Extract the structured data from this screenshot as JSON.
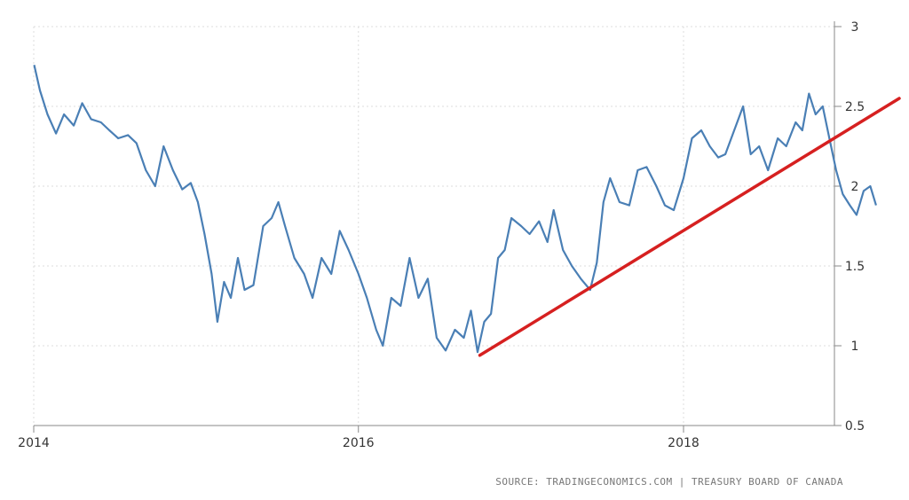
{
  "chart_data": {
    "type": "line",
    "title": "",
    "xlabel": "",
    "ylabel": "",
    "x_ticks": [
      {
        "label": "2014",
        "x": "2014-01-01"
      },
      {
        "label": "2016",
        "x": "2016-01-01"
      },
      {
        "label": "2018",
        "x": "2018-01-01"
      }
    ],
    "y_ticks": [
      {
        "label": "0.5",
        "y": 0.5
      },
      {
        "label": "1",
        "y": 1
      },
      {
        "label": "1.5",
        "y": 1.5
      },
      {
        "label": "2",
        "y": 2
      },
      {
        "label": "2.5",
        "y": 2.5
      },
      {
        "label": "3",
        "y": 3
      }
    ],
    "xlim": [
      "2014-01-01",
      "2019-05-01"
    ],
    "ylim": [
      0.5,
      3
    ],
    "grid": true,
    "y_axis_side": "right",
    "series": [
      {
        "color": "#4a7fb5",
        "points": [
          [
            "2014-01-02",
            2.76
          ],
          [
            "2014-01-15",
            2.6
          ],
          [
            "2014-02-01",
            2.45
          ],
          [
            "2014-02-20",
            2.33
          ],
          [
            "2014-03-10",
            2.45
          ],
          [
            "2014-04-01",
            2.38
          ],
          [
            "2014-04-20",
            2.52
          ],
          [
            "2014-05-10",
            2.42
          ],
          [
            "2014-06-01",
            2.4
          ],
          [
            "2014-06-20",
            2.35
          ],
          [
            "2014-07-10",
            2.3
          ],
          [
            "2014-08-01",
            2.32
          ],
          [
            "2014-08-20",
            2.27
          ],
          [
            "2014-09-10",
            2.1
          ],
          [
            "2014-10-01",
            2.0
          ],
          [
            "2014-10-20",
            2.25
          ],
          [
            "2014-11-10",
            2.1
          ],
          [
            "2014-12-01",
            1.98
          ],
          [
            "2014-12-20",
            2.02
          ],
          [
            "2015-01-05",
            1.9
          ],
          [
            "2015-01-20",
            1.7
          ],
          [
            "2015-02-05",
            1.45
          ],
          [
            "2015-02-18",
            1.15
          ],
          [
            "2015-03-05",
            1.4
          ],
          [
            "2015-03-20",
            1.3
          ],
          [
            "2015-04-05",
            1.55
          ],
          [
            "2015-04-20",
            1.35
          ],
          [
            "2015-05-10",
            1.38
          ],
          [
            "2015-06-01",
            1.75
          ],
          [
            "2015-06-20",
            1.8
          ],
          [
            "2015-07-05",
            1.9
          ],
          [
            "2015-07-20",
            1.75
          ],
          [
            "2015-08-10",
            1.55
          ],
          [
            "2015-09-01",
            1.45
          ],
          [
            "2015-09-20",
            1.3
          ],
          [
            "2015-10-10",
            1.55
          ],
          [
            "2015-11-01",
            1.45
          ],
          [
            "2015-11-20",
            1.72
          ],
          [
            "2015-12-10",
            1.6
          ],
          [
            "2016-01-01",
            1.45
          ],
          [
            "2016-01-20",
            1.3
          ],
          [
            "2016-02-10",
            1.1
          ],
          [
            "2016-02-25",
            1.0
          ],
          [
            "2016-03-15",
            1.3
          ],
          [
            "2016-04-05",
            1.25
          ],
          [
            "2016-04-25",
            1.55
          ],
          [
            "2016-05-15",
            1.3
          ],
          [
            "2016-06-05",
            1.42
          ],
          [
            "2016-06-25",
            1.05
          ],
          [
            "2016-07-15",
            0.97
          ],
          [
            "2016-08-05",
            1.1
          ],
          [
            "2016-08-25",
            1.05
          ],
          [
            "2016-09-10",
            1.22
          ],
          [
            "2016-09-25",
            0.96
          ],
          [
            "2016-10-10",
            1.15
          ],
          [
            "2016-10-25",
            1.2
          ],
          [
            "2016-11-10",
            1.55
          ],
          [
            "2016-11-25",
            1.6
          ],
          [
            "2016-12-10",
            1.8
          ],
          [
            "2017-01-01",
            1.75
          ],
          [
            "2017-01-20",
            1.7
          ],
          [
            "2017-02-10",
            1.78
          ],
          [
            "2017-03-01",
            1.65
          ],
          [
            "2017-03-15",
            1.85
          ],
          [
            "2017-04-05",
            1.6
          ],
          [
            "2017-04-25",
            1.5
          ],
          [
            "2017-05-15",
            1.42
          ],
          [
            "2017-06-05",
            1.35
          ],
          [
            "2017-06-20",
            1.52
          ],
          [
            "2017-07-05",
            1.9
          ],
          [
            "2017-07-20",
            2.05
          ],
          [
            "2017-08-10",
            1.9
          ],
          [
            "2017-09-01",
            1.88
          ],
          [
            "2017-09-20",
            2.1
          ],
          [
            "2017-10-10",
            2.12
          ],
          [
            "2017-11-01",
            2.0
          ],
          [
            "2017-11-20",
            1.88
          ],
          [
            "2017-12-10",
            1.85
          ],
          [
            "2018-01-01",
            2.05
          ],
          [
            "2018-01-20",
            2.3
          ],
          [
            "2018-02-10",
            2.35
          ],
          [
            "2018-03-01",
            2.25
          ],
          [
            "2018-03-20",
            2.18
          ],
          [
            "2018-04-05",
            2.2
          ],
          [
            "2018-04-25",
            2.35
          ],
          [
            "2018-05-15",
            2.5
          ],
          [
            "2018-06-01",
            2.2
          ],
          [
            "2018-06-20",
            2.25
          ],
          [
            "2018-07-10",
            2.1
          ],
          [
            "2018-08-01",
            2.3
          ],
          [
            "2018-08-20",
            2.25
          ],
          [
            "2018-09-10",
            2.4
          ],
          [
            "2018-09-25",
            2.35
          ],
          [
            "2018-10-10",
            2.58
          ],
          [
            "2018-10-25",
            2.45
          ],
          [
            "2018-11-10",
            2.5
          ],
          [
            "2018-11-25",
            2.3
          ],
          [
            "2018-12-10",
            2.1
          ],
          [
            "2018-12-25",
            1.95
          ],
          [
            "2019-01-10",
            1.88
          ],
          [
            "2019-01-25",
            1.82
          ],
          [
            "2019-02-10",
            1.97
          ],
          [
            "2019-02-25",
            2.0
          ],
          [
            "2019-03-10",
            1.88
          ]
        ]
      }
    ],
    "annotations": [
      {
        "type": "trendline",
        "color": "#d62020",
        "from": [
          "2016-09-30",
          0.94
        ],
        "to": [
          "2019-05-01",
          2.55
        ]
      }
    ],
    "source": "SOURCE: TRADINGECONOMICS.COM | TREASURY BOARD OF CANADA"
  }
}
